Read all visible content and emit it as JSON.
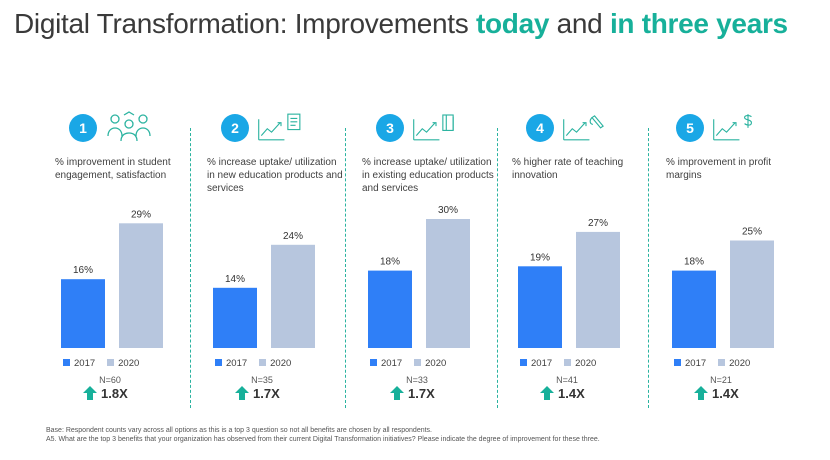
{
  "title": {
    "prefix": "Digital Transformation: Improvements ",
    "hl1": "today",
    "mid": " and ",
    "hl2": "in three years"
  },
  "colors": {
    "series_2017": "#2f7ff7",
    "series_2020": "#b7c6de",
    "accent": "#17b09a",
    "badge": "#1aa7e6"
  },
  "panels": [
    {
      "number": "1",
      "icon": "people-network-icon",
      "desc": "% improvement in student engagement, satisfaction",
      "n": "N=60",
      "multiplier": "1.8X"
    },
    {
      "number": "2",
      "icon": "growth-chart-document-icon",
      "desc": "% increase uptake/ utilization in new education products and services",
      "n": "N=35",
      "multiplier": "1.7X"
    },
    {
      "number": "3",
      "icon": "growth-chart-book-icon",
      "desc": "% increase uptake/ utilization in existing education products and services",
      "n": "N=33",
      "multiplier": "1.7X"
    },
    {
      "number": "4",
      "icon": "growth-chart-pen-icon",
      "desc": "% higher rate of teaching innovation",
      "n": "N=41",
      "multiplier": "1.4X"
    },
    {
      "number": "5",
      "icon": "growth-chart-dollar-icon",
      "desc": "% improvement in profit margins",
      "n": "N=21",
      "multiplier": "1.4X"
    }
  ],
  "legend": {
    "a": "2017",
    "b": "2020"
  },
  "chart_data": [
    {
      "type": "bar",
      "categories": [
        "2017",
        "2020"
      ],
      "values": [
        16,
        29
      ],
      "labels": [
        "16%",
        "29%"
      ]
    },
    {
      "type": "bar",
      "categories": [
        "2017",
        "2020"
      ],
      "values": [
        14,
        24
      ],
      "labels": [
        "14%",
        "24%"
      ]
    },
    {
      "type": "bar",
      "categories": [
        "2017",
        "2020"
      ],
      "values": [
        18,
        30
      ],
      "labels": [
        "18%",
        "30%"
      ]
    },
    {
      "type": "bar",
      "categories": [
        "2017",
        "2020"
      ],
      "values": [
        19,
        27
      ],
      "labels": [
        "19%",
        "27%"
      ]
    },
    {
      "type": "bar",
      "categories": [
        "2017",
        "2020"
      ],
      "values": [
        18,
        25
      ],
      "labels": [
        "18%",
        "25%"
      ]
    }
  ],
  "footnote": {
    "line1": "Base: Respondent counts vary across all options as this is a top 3 question so not all benefits are chosen by all respondents.",
    "line2": "A5. What are the top 3 benefits that your organization has observed from their current Digital Transformation initiatives? Please indicate the degree of improvement for these three."
  }
}
